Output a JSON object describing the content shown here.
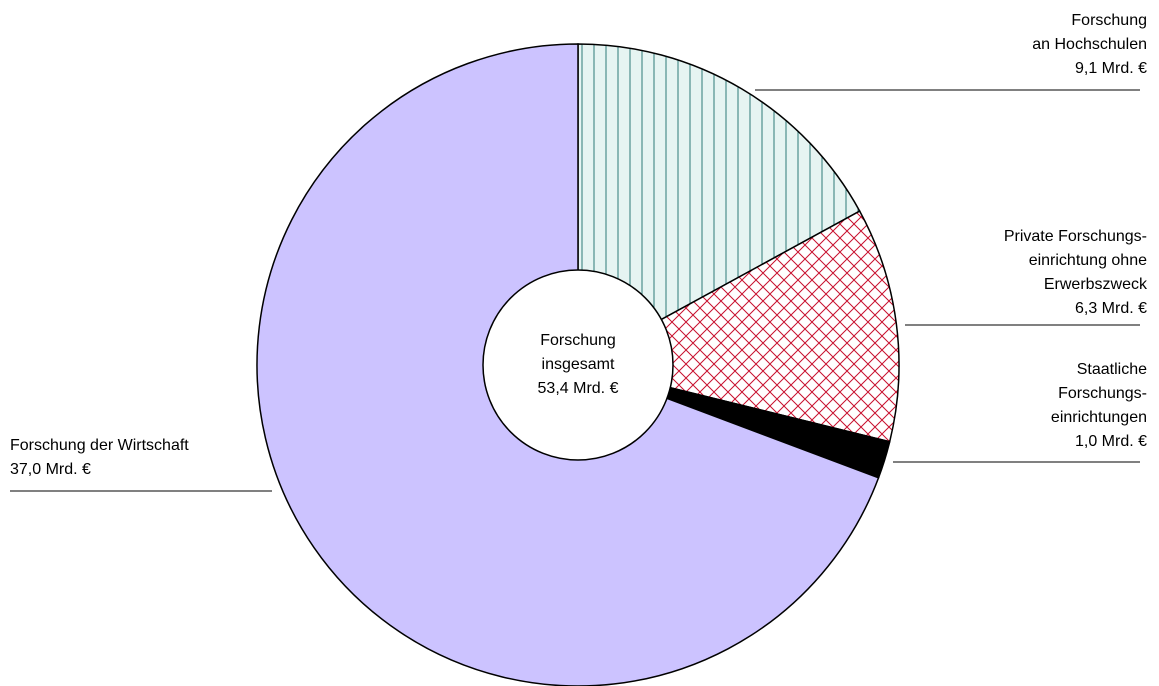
{
  "chart_data": {
    "type": "pie",
    "categories": [
      [
        "Forschung",
        "an Hochschulen"
      ],
      [
        "Private Forschungs-",
        "einrichtung ohne",
        "Erwerbszweck"
      ],
      [
        "Staatliche",
        "Forschungs-",
        "einrichtungen"
      ],
      [
        "Forschung der Wirtschaft"
      ]
    ],
    "values": [
      9.1,
      6.3,
      1.0,
      37.0
    ],
    "value_labels": [
      "9,1 Mrd. €",
      "6,3 Mrd. €",
      "1,0 Mrd. €",
      "37,0 Mrd. €"
    ],
    "colors": [
      "#e6f4f2",
      "#ffffff",
      "#000000",
      "#ccc3ff"
    ],
    "patterns": [
      "vertical-lines",
      "crosshatch",
      "solid",
      "solid"
    ],
    "pattern_colors": [
      "#2f7a78",
      "#c8102e",
      "#000000",
      "#ccc3ff"
    ],
    "center_label": [
      "Forschung",
      "insgesamt"
    ],
    "total": 53.4,
    "total_label": "53,4 Mrd. €"
  }
}
